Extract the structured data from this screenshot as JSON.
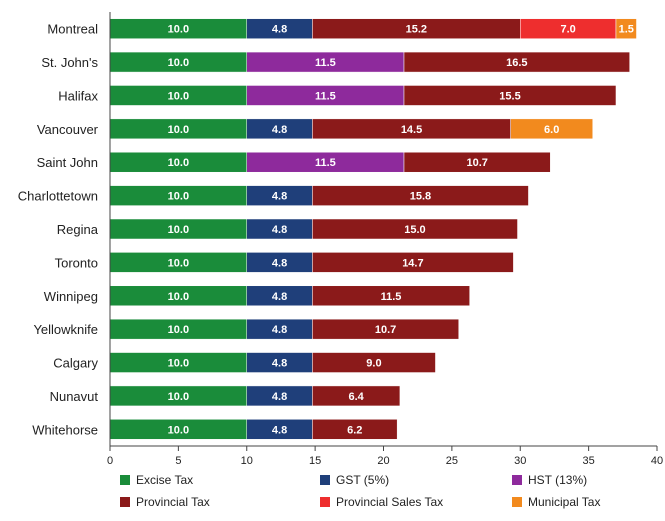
{
  "chart_data": {
    "type": "bar",
    "orientation": "horizontal",
    "stacked": true,
    "categories": [
      "Montreal",
      "St. John's",
      "Halifax",
      "Vancouver",
      "Saint John",
      "Charlottetown",
      "Regina",
      "Toronto",
      "Winnipeg",
      "Yellowknife",
      "Calgary",
      "Nunavut",
      "Whitehorse"
    ],
    "series": [
      {
        "name": "Excise Tax",
        "color": "#1a8c3a",
        "values": [
          10.0,
          10.0,
          10.0,
          10.0,
          10.0,
          10.0,
          10.0,
          10.0,
          10.0,
          10.0,
          10.0,
          10.0,
          10.0
        ]
      },
      {
        "name": "GST (5%)",
        "color": "#1f3f7a",
        "values": [
          4.8,
          null,
          null,
          4.8,
          null,
          4.8,
          4.8,
          4.8,
          4.8,
          4.8,
          4.8,
          4.8,
          4.8
        ]
      },
      {
        "name": "HST (13%)",
        "color": "#8e2a9c",
        "values": [
          null,
          11.5,
          11.5,
          null,
          11.5,
          null,
          null,
          null,
          null,
          null,
          null,
          null,
          null
        ]
      },
      {
        "name": "Provincial Tax",
        "color": "#8b1a1a",
        "values": [
          15.2,
          16.5,
          15.5,
          14.5,
          10.7,
          15.8,
          15.0,
          14.7,
          11.5,
          10.7,
          9.0,
          6.4,
          6.2
        ]
      },
      {
        "name": "Provincial Sales Tax",
        "color": "#ee2e2e",
        "values": [
          7.0,
          null,
          null,
          null,
          null,
          null,
          null,
          null,
          null,
          null,
          null,
          null,
          null
        ]
      },
      {
        "name": "Municipal Tax",
        "color": "#f28a1e",
        "values": [
          1.5,
          null,
          null,
          6.0,
          null,
          null,
          null,
          null,
          null,
          null,
          null,
          null,
          null
        ]
      }
    ],
    "xlim": [
      0,
      40
    ],
    "xticks": [
      0,
      5,
      10,
      15,
      20,
      25,
      30,
      35,
      40
    ],
    "grid": false,
    "legend_position": "bottom",
    "title": "",
    "xlabel": "",
    "ylabel": ""
  }
}
